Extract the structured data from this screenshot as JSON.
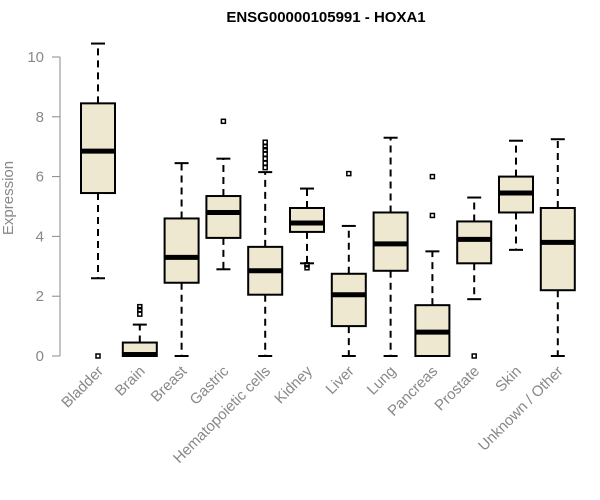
{
  "chart_data": {
    "type": "boxplot",
    "title": "ENSG00000105991 - HOXA1",
    "xlabel": "",
    "ylabel": "Expression",
    "ylim": [
      0,
      10.5
    ],
    "yticks": [
      0,
      2,
      4,
      6,
      8,
      10
    ],
    "grid": false,
    "box_fill": "#efe8d0",
    "categories": [
      "Bladder",
      "Brain",
      "Breast",
      "Gastric",
      "Hematopoietic cells",
      "Kidney",
      "Liver",
      "Lung",
      "Pancreas",
      "Prostate",
      "Skin",
      "Unknown / Other"
    ],
    "boxes": [
      {
        "min": 2.6,
        "q1": 5.45,
        "median": 6.85,
        "q3": 8.45,
        "max": 10.45,
        "outliers": [
          0.0
        ]
      },
      {
        "min": 0.0,
        "q1": 0.0,
        "median": 0.05,
        "q3": 0.45,
        "max": 1.05,
        "outliers": [
          1.4,
          1.55,
          1.65
        ]
      },
      {
        "min": 0.0,
        "q1": 2.45,
        "median": 3.3,
        "q3": 4.6,
        "max": 6.45,
        "outliers": []
      },
      {
        "min": 2.9,
        "q1": 3.95,
        "median": 4.8,
        "q3": 5.35,
        "max": 6.6,
        "outliers": [
          7.85
        ]
      },
      {
        "min": 0.0,
        "q1": 2.05,
        "median": 2.85,
        "q3": 3.65,
        "max": 6.15,
        "outliers": [
          6.3,
          6.45,
          6.6,
          6.75,
          6.9,
          7.0,
          7.15
        ]
      },
      {
        "min": 3.1,
        "q1": 4.15,
        "median": 4.45,
        "q3": 4.95,
        "max": 5.6,
        "outliers": [
          2.95,
          3.05
        ]
      },
      {
        "min": 0.0,
        "q1": 1.0,
        "median": 2.05,
        "q3": 2.75,
        "max": 4.35,
        "outliers": [
          6.1
        ]
      },
      {
        "min": 0.0,
        "q1": 2.85,
        "median": 3.75,
        "q3": 4.8,
        "max": 7.3,
        "outliers": []
      },
      {
        "min": 0.0,
        "q1": 0.0,
        "median": 0.8,
        "q3": 1.7,
        "max": 3.5,
        "outliers": [
          4.7,
          6.0
        ]
      },
      {
        "min": 1.9,
        "q1": 3.1,
        "median": 3.9,
        "q3": 4.5,
        "max": 5.3,
        "outliers": [
          0.0
        ]
      },
      {
        "min": 3.55,
        "q1": 4.8,
        "median": 5.45,
        "q3": 6.0,
        "max": 7.2,
        "outliers": []
      },
      {
        "min": 0.0,
        "q1": 2.2,
        "median": 3.8,
        "q3": 4.95,
        "max": 7.25,
        "outliers": []
      }
    ]
  }
}
